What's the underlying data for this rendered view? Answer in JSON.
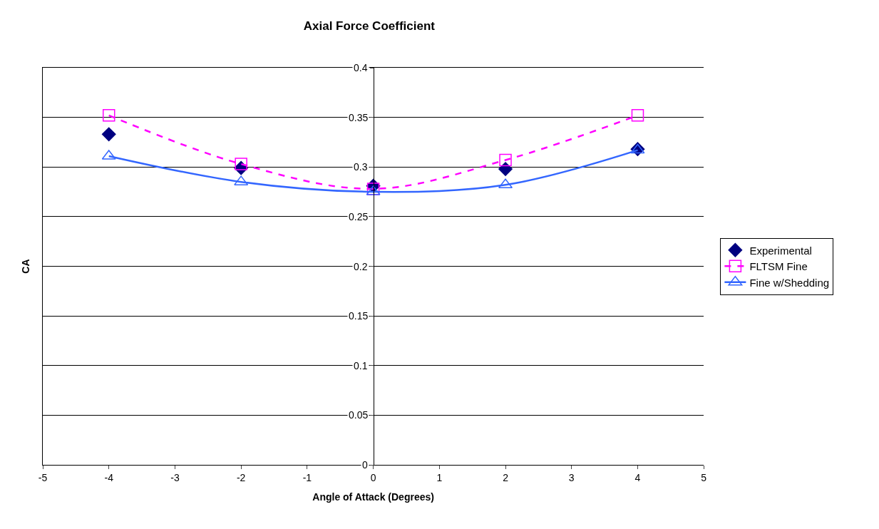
{
  "chart_data": {
    "type": "line",
    "title": "Axial Force Coefficient",
    "xlabel": "Angle of Attack (Degrees)",
    "ylabel": "CA",
    "x": [
      -4,
      -2,
      0,
      2,
      4
    ],
    "series": [
      {
        "name": "Experimental",
        "type": "scatter",
        "color": "#000080",
        "marker": "diamond",
        "values": [
          0.333,
          0.299,
          0.281,
          0.298,
          0.318
        ]
      },
      {
        "name": "FLTSM Fine",
        "type": "line",
        "color": "#ff00ff",
        "marker": "square",
        "line_style": "dashed",
        "values": [
          0.352,
          0.303,
          0.278,
          0.307,
          0.352
        ]
      },
      {
        "name": "Fine w/Shedding",
        "type": "line",
        "color": "#3366ff",
        "marker": "triangle",
        "line_style": "solid",
        "values": [
          0.311,
          0.285,
          0.275,
          0.282,
          0.317
        ]
      }
    ],
    "xlim": [
      -5,
      5
    ],
    "xticks": [
      -5,
      -4,
      -3,
      -2,
      -1,
      0,
      1,
      2,
      3,
      4,
      5
    ],
    "ylim": [
      0,
      0.4
    ],
    "yticks": [
      0,
      0.05,
      0.1,
      0.15,
      0.2,
      0.25,
      0.3,
      0.35,
      0.4
    ],
    "grid": "y",
    "legend": "right"
  }
}
